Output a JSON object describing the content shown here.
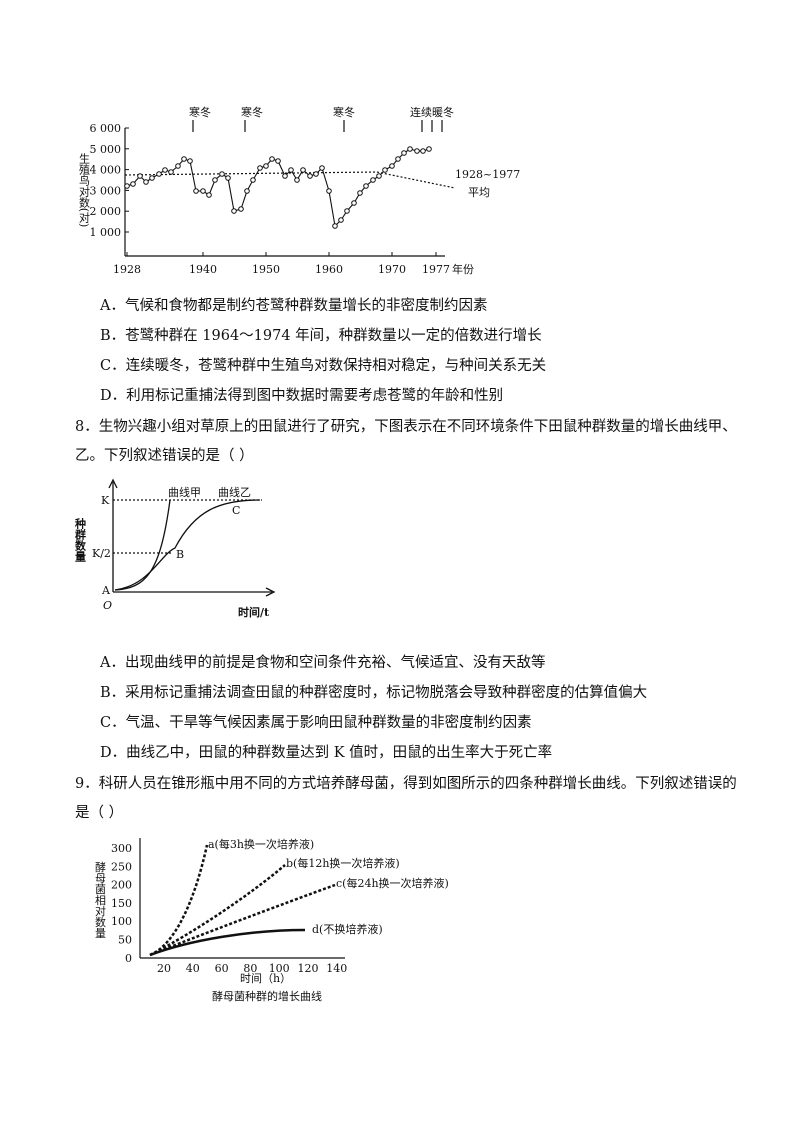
{
  "figure1": {
    "y_label": "生殖鸟对数(对)",
    "yticks": [
      "6 000",
      "5 000",
      "4 000",
      "3 000",
      "2 000",
      "1 000"
    ],
    "xticks": [
      "1928",
      "1940",
      "1950",
      "1960",
      "1970",
      "1977"
    ],
    "x_label": "年份",
    "annotations": [
      "寒冬",
      "寒冬",
      "寒冬",
      "连续暖冬"
    ],
    "average_label": "1928~1977",
    "average_sub": "平均"
  },
  "q7_options": [
    "A．气候和食物都是制约苍鹭种群数量增长的非密度制约因素",
    "B．苍鹭种群在 1964～1974 年间，种群数量以一定的倍数进行增长",
    "C．连续暖冬，苍鹭种群中生殖鸟对数保持相对稳定，与种间关系无关",
    "D．利用标记重捕法得到图中数据时需要考虑苍鹭的年龄和性别"
  ],
  "q8": {
    "stem": [
      "8．生物兴趣小组对草原上的田鼠进行了研究，下图表示在不同环境条件下田鼠种群数量的增长曲线甲、",
      "乙。下列叙述错误的是（    ）"
    ],
    "figure": {
      "y_label": "种群数量",
      "x_label": "时间/t",
      "k": "K",
      "k_half": "K/2",
      "origin": "O",
      "point_a": "A",
      "point_b": "B",
      "point_c": "C",
      "curve_1": "曲线甲",
      "curve_2": "曲线乙"
    },
    "options": [
      "A．出现曲线甲的前提是食物和空间条件充裕、气候适宜、没有天敌等",
      "B．采用标记重捕法调查田鼠的种群密度时，标记物脱落会导致种群密度的估算值偏大",
      "C．气温、干旱等气候因素属于影响田鼠种群数量的非密度制约因素",
      "D．曲线乙中，田鼠的种群数量达到 K 值时，田鼠的出生率大于死亡率"
    ]
  },
  "q9": {
    "stem": [
      "9．科研人员在锥形瓶中用不同的方式培养酵母菌，得到如图所示的四条种群增长曲线。下列叙述错误的",
      "是（    ）"
    ],
    "figure": {
      "y_label": "酵母菌相对数量",
      "yticks": [
        "300",
        "250",
        "200",
        "150",
        "100",
        "50",
        "0"
      ],
      "xticks": [
        "20",
        "40",
        "60",
        "80",
        "100",
        "120",
        "140"
      ],
      "x_label": "时间（h）",
      "caption": "酵母菌种群的增长曲线",
      "curves": [
        "a(每3h换一次培养液)",
        "b(每12h换一次培养液)",
        "c(每24h换一次培养液)",
        "d(不换培养液)"
      ]
    }
  }
}
